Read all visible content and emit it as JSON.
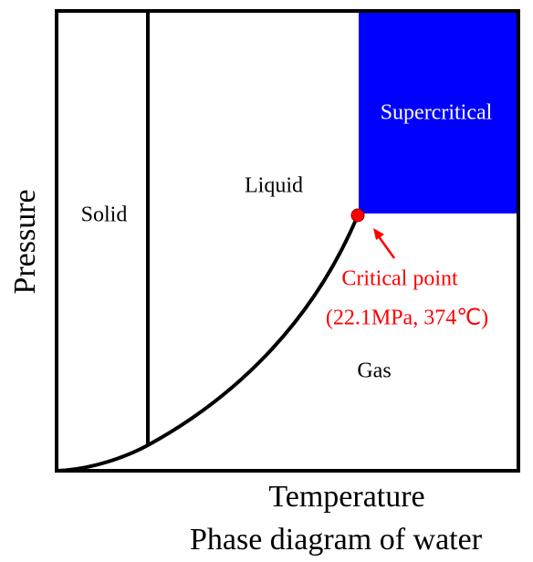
{
  "title": "Phase diagram of water",
  "axes": {
    "x_label": "Temperature",
    "y_label": "Pressure"
  },
  "regions": {
    "solid": "Solid",
    "liquid": "Liquid",
    "gas": "Gas",
    "supercritical": "Supercritical"
  },
  "critical_point": {
    "label": "Critical point",
    "value": "(22.1MPa, 374℃)"
  }
}
